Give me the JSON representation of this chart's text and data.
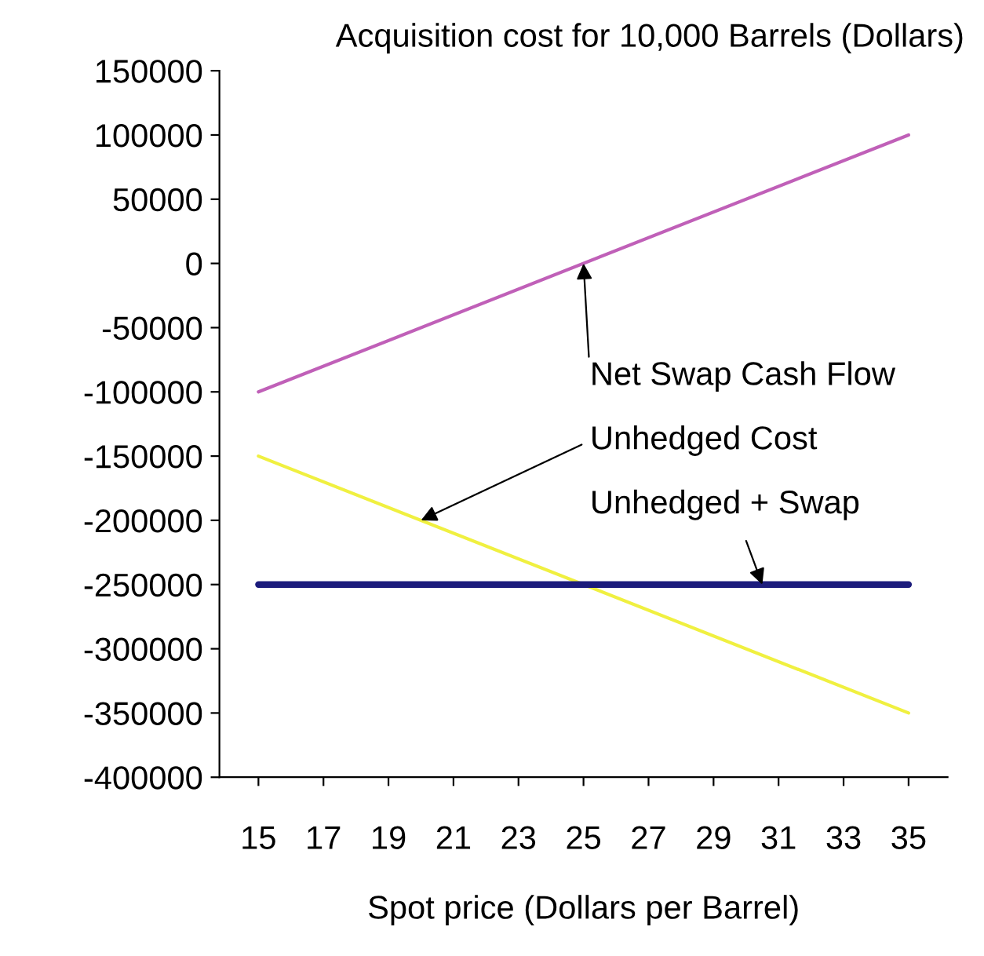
{
  "chart_data": {
    "type": "line",
    "title": "Acquisition cost for 10,000 Barrels (Dollars)",
    "xlabel": "Spot price (Dollars per Barrel)",
    "x": [
      15,
      35
    ],
    "series": [
      {
        "color": "#c060b8",
        "values": [
          -100000,
          100000
        ]
      },
      {
        "color": "#f0f040",
        "values": [
          -150000,
          -350000
        ]
      },
      {
        "color": "#1c1c7c",
        "values": [
          -250000,
          -250000
        ]
      }
    ],
    "xlim": [
      13.8,
      36.2
    ],
    "xticks": [
      15,
      17,
      19,
      21,
      23,
      25,
      27,
      29,
      31,
      33,
      35
    ],
    "ylim": [
      -400000,
      150000
    ],
    "yticks": [
      -400000,
      -350000,
      -300000,
      -250000,
      -200000,
      -150000,
      -100000,
      -50000,
      0,
      50000,
      100000,
      150000
    ],
    "annotations": [
      {
        "text": "Net Swap Cash Flow",
        "x": 25,
        "y": 0
      },
      {
        "text": "Unhedged Cost",
        "x": 20,
        "y": -200000
      },
      {
        "text": "Unhedged + Swap",
        "x": 30.5,
        "y": -250000
      }
    ],
    "grid": false,
    "legend": false
  }
}
